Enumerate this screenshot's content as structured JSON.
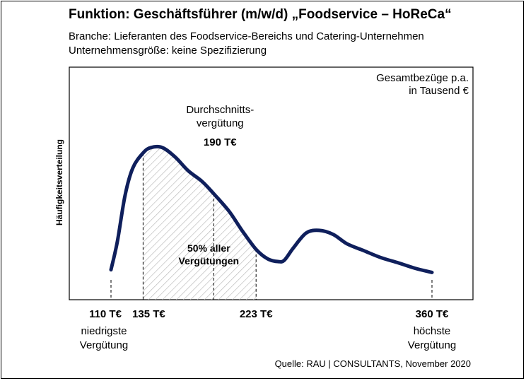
{
  "header": {
    "title": "Funktion: Geschäftsführer (m/w/d) „Foodservice – HoReCa“",
    "line1": "Branche: Lieferanten des Foodservice-Bereichs und Catering-Unternehmen",
    "line2": "Unternehmensgröße: keine Spezifizierung"
  },
  "source": "Quelle: RAU | CONSULTANTS, November 2020",
  "colors": {
    "curve": "#0f1f5c",
    "hatch": "#b8b8b8",
    "axis": "#000000"
  },
  "chart_data": {
    "type": "area",
    "title": "",
    "ylabel": "Häufigkeitsverteilung",
    "xlabel": "Gesamtbezüge p.a. in Tausend €",
    "xlabel_lines": [
      "Gesamtbezüge p.a.",
      "in Tausend €"
    ],
    "xlim": [
      110,
      360
    ],
    "grid": false,
    "series": [
      {
        "x": [
          110,
          115,
          121,
          127,
          135,
          141,
          150,
          160,
          170,
          181,
          190,
          202,
          212,
          223,
          232,
          240,
          245,
          252,
          262,
          272,
          283,
          294,
          307,
          320,
          334,
          347,
          360
        ],
        "y": [
          0.07,
          0.28,
          0.62,
          0.82,
          0.93,
          0.97,
          0.97,
          0.9,
          0.8,
          0.72,
          0.63,
          0.5,
          0.36,
          0.22,
          0.15,
          0.13,
          0.14,
          0.23,
          0.34,
          0.36,
          0.33,
          0.26,
          0.21,
          0.16,
          0.12,
          0.08,
          0.05
        ]
      }
    ],
    "markers": [
      {
        "x": 110,
        "value_label": "110 T€",
        "desc": [
          "niedrigste",
          "Vergütung"
        ]
      },
      {
        "x": 135,
        "value_label": "135 T€",
        "desc": []
      },
      {
        "x": 223,
        "value_label": "223 T€",
        "desc": []
      },
      {
        "x": 360,
        "value_label": "360 T€",
        "desc": [
          "höchste",
          "Vergütung"
        ]
      }
    ],
    "median": {
      "x": 190,
      "label_lines": [
        "Durchschnitts-",
        "vergütung"
      ],
      "value_label": "190 T€"
    },
    "shaded_range": {
      "from": 135,
      "to": 223,
      "label_lines": [
        "50% aller",
        "Vergütungen"
      ]
    }
  }
}
